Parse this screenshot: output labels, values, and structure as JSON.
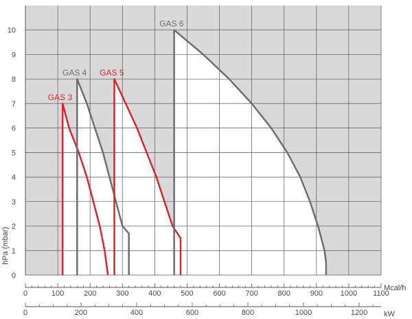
{
  "chart_data": {
    "type": "area",
    "ylabel": "hPa (mbar)",
    "ylim": [
      0,
      11
    ],
    "yticks": [
      0,
      1,
      2,
      3,
      4,
      5,
      6,
      7,
      8,
      9,
      10
    ],
    "grid": true,
    "background_colors": {
      "outside_envelope": "#d9d9d9",
      "inside_envelope": "#ffffff"
    },
    "x_axis_primary": {
      "unit": "Mcal/h",
      "range": [
        0,
        1100
      ],
      "ticks": [
        0,
        100,
        200,
        300,
        400,
        500,
        600,
        700,
        800,
        900,
        1000,
        1100
      ]
    },
    "x_axis_secondary": {
      "unit": "kW",
      "ticks": [
        0,
        200,
        400,
        600,
        800,
        1000,
        1200
      ]
    },
    "series": [
      {
        "name": "GAS 3",
        "color": "#d9262c",
        "points": [
          [
            115,
            0
          ],
          [
            115,
            7
          ],
          [
            135,
            6
          ],
          [
            165,
            5
          ],
          [
            190,
            4
          ],
          [
            210,
            3
          ],
          [
            230,
            2
          ],
          [
            245,
            1
          ],
          [
            255,
            0
          ]
        ]
      },
      {
        "name": "GAS 4",
        "color": "#6d6e71",
        "points": [
          [
            160,
            0
          ],
          [
            160,
            8
          ],
          [
            190,
            7
          ],
          [
            215,
            6
          ],
          [
            240,
            5
          ],
          [
            260,
            4
          ],
          [
            280,
            3
          ],
          [
            300,
            2
          ],
          [
            320,
            1.7
          ],
          [
            320,
            0
          ]
        ]
      },
      {
        "name": "GAS 5",
        "color": "#d9262c",
        "points": [
          [
            275,
            0
          ],
          [
            275,
            8
          ],
          [
            310,
            7
          ],
          [
            345,
            6
          ],
          [
            375,
            5
          ],
          [
            405,
            4
          ],
          [
            430,
            3
          ],
          [
            455,
            2
          ],
          [
            480,
            1.5
          ],
          [
            480,
            0
          ]
        ]
      },
      {
        "name": "GAS 6",
        "color": "#6d6e71",
        "points": [
          [
            460,
            0
          ],
          [
            460,
            10
          ],
          [
            550,
            9
          ],
          [
            630,
            8
          ],
          [
            700,
            7
          ],
          [
            760,
            6
          ],
          [
            810,
            5
          ],
          [
            850,
            4
          ],
          [
            880,
            3
          ],
          [
            905,
            2
          ],
          [
            925,
            1
          ],
          [
            930,
            0.5
          ],
          [
            930,
            0
          ]
        ]
      }
    ]
  }
}
